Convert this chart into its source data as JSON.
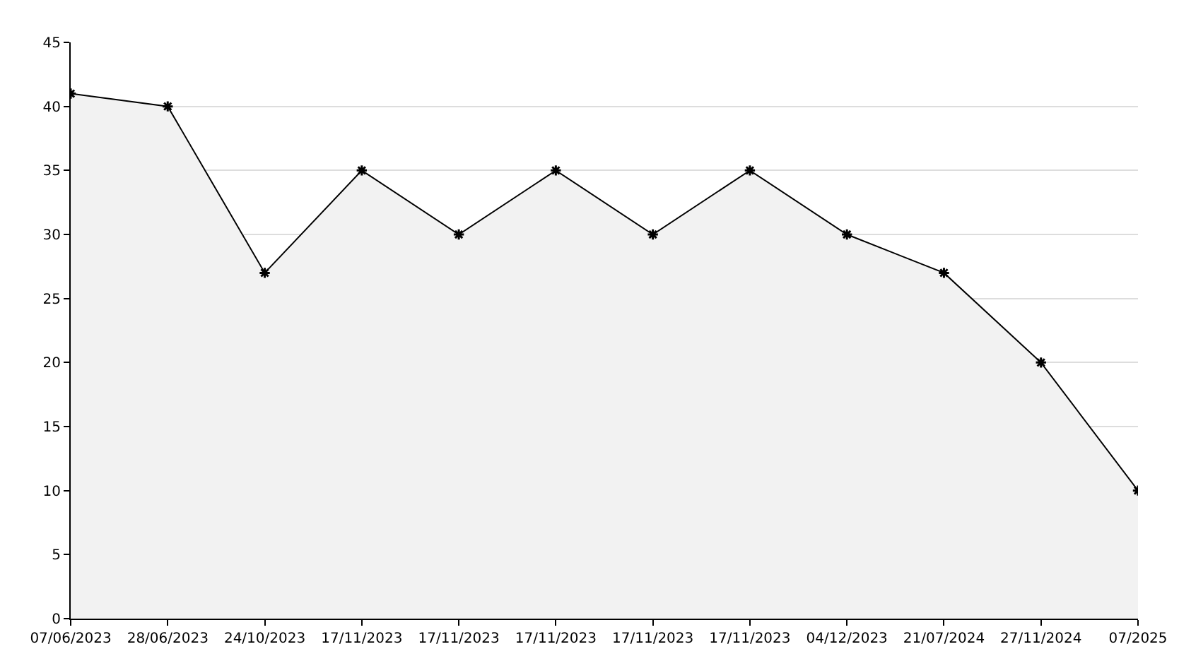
{
  "chart_data": {
    "type": "area",
    "categories": [
      "07/06/2023",
      "28/06/2023",
      "24/10/2023",
      "17/11/2023",
      "17/11/2023",
      "17/11/2023",
      "17/11/2023",
      "17/11/2023",
      "04/12/2023",
      "21/07/2024",
      "27/11/2024",
      "07/2025"
    ],
    "series": [
      {
        "color": "#000000",
        "values": [
          41,
          40,
          27,
          35,
          30,
          35,
          30,
          35,
          30,
          27,
          20,
          10
        ]
      }
    ],
    "ylim": [
      0,
      45
    ],
    "yticks": [
      0,
      5,
      10,
      15,
      20,
      25,
      30,
      35,
      40,
      45
    ],
    "grid": "y",
    "marker": "cross"
  }
}
